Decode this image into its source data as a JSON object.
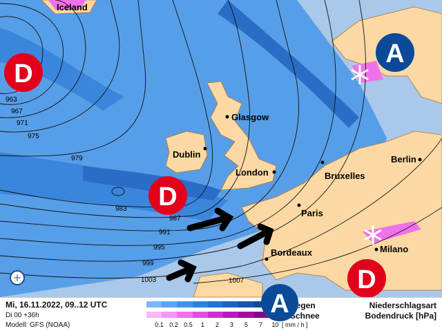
{
  "header": {
    "date": "Mi, 16.11.2022, 09..12 UTC",
    "run": "Di 00 +36h",
    "model": "Modell: GFS (NOAA)"
  },
  "legend": {
    "rain_label": "Regen",
    "snow_label": "Schnee",
    "unit": "[ mm / h ]",
    "ticks": [
      "0.1",
      "0.2",
      "0.5",
      "1",
      "2",
      "3",
      "5",
      "7",
      "10"
    ],
    "rain_colors": [
      "#7ab8f5",
      "#5aa6f0",
      "#3f94ea",
      "#2a82e2",
      "#1f72d6",
      "#1a63c4",
      "#1655ae",
      "#144a98",
      "#0f3c80"
    ],
    "snow_colors": [
      "#f8b8f8",
      "#f596f2",
      "#ef72ea",
      "#e050e0",
      "#cc30cc",
      "#b81cb8",
      "#a010a0",
      "#880888",
      "#700070"
    ],
    "title1": "Niederschlagsart",
    "title2": "Bodendruck [hPa]"
  },
  "map": {
    "isobars": [
      "963",
      "967",
      "971",
      "975",
      "979",
      "983",
      "987",
      "991",
      "995",
      "999",
      "1003",
      "1007"
    ],
    "cities": [
      "Iceland",
      "Glasgow",
      "Dublin",
      "London",
      "Bruxelles",
      "Paris",
      "Bordeaux",
      "Berlin",
      "Milano"
    ],
    "high_label": "A",
    "low_label": "D",
    "colors": {
      "sea": "#a9c8ea",
      "precip": "#3f8ee6",
      "land": "#fcd9a4",
      "low": "#e3001b",
      "high": "#0b4a99"
    }
  }
}
